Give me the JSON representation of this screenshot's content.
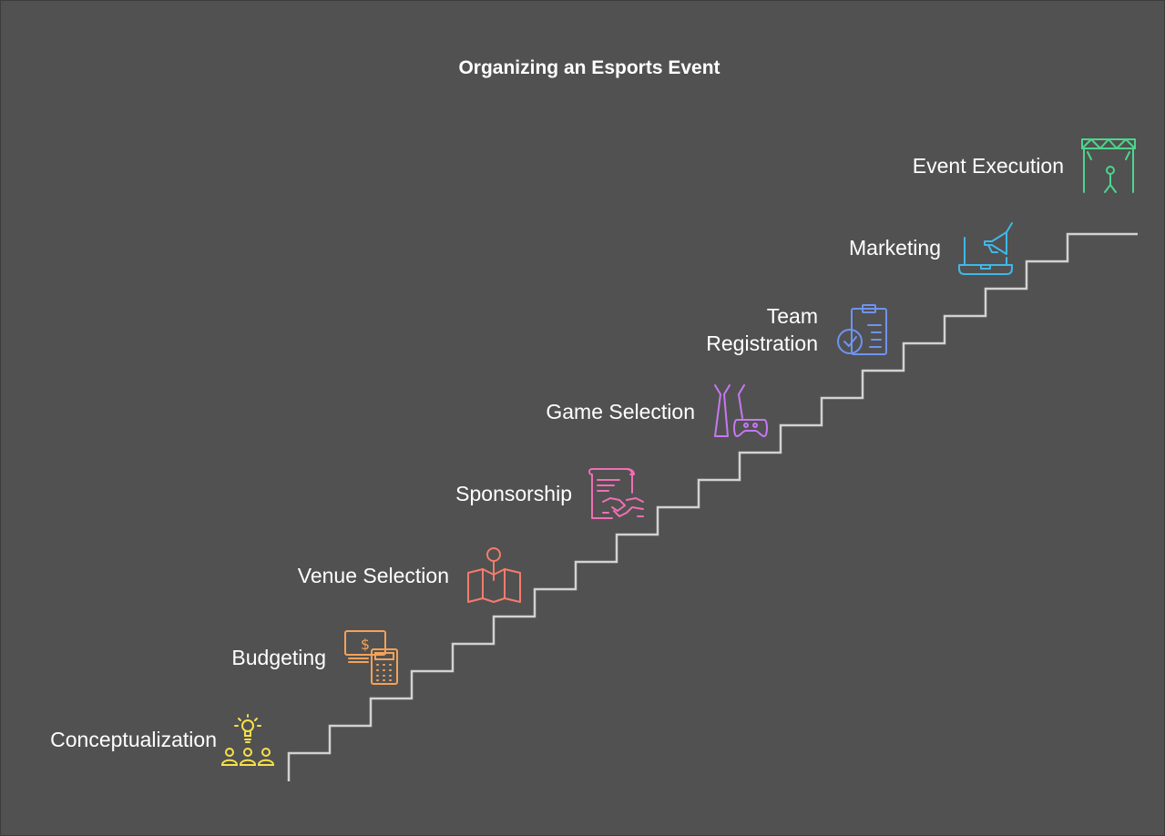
{
  "diagram": {
    "title": "Organizing an Esports Event",
    "steps": [
      {
        "label": "Conceptualization",
        "icon": "lightbulb-team-icon",
        "color": "#f7e14b"
      },
      {
        "label": "Budgeting",
        "icon": "money-calculator-icon",
        "color": "#f4a259"
      },
      {
        "label": "Venue Selection",
        "icon": "map-pin-icon",
        "color": "#f47c6c"
      },
      {
        "label": "Sponsorship",
        "icon": "contract-handshake-icon",
        "color": "#f06fb4"
      },
      {
        "label": "Game Selection",
        "icon": "game-controller-icon",
        "color": "#c678f2"
      },
      {
        "label": "Team\nRegistration",
        "icon": "clipboard-check-icon",
        "color": "#6f93f0"
      },
      {
        "label": "Marketing",
        "icon": "laptop-megaphone-icon",
        "color": "#3fb8e8"
      },
      {
        "label": "Event Execution",
        "icon": "stage-icon",
        "color": "#4cd68c"
      }
    ],
    "stair_color": "#d2d2d2"
  }
}
